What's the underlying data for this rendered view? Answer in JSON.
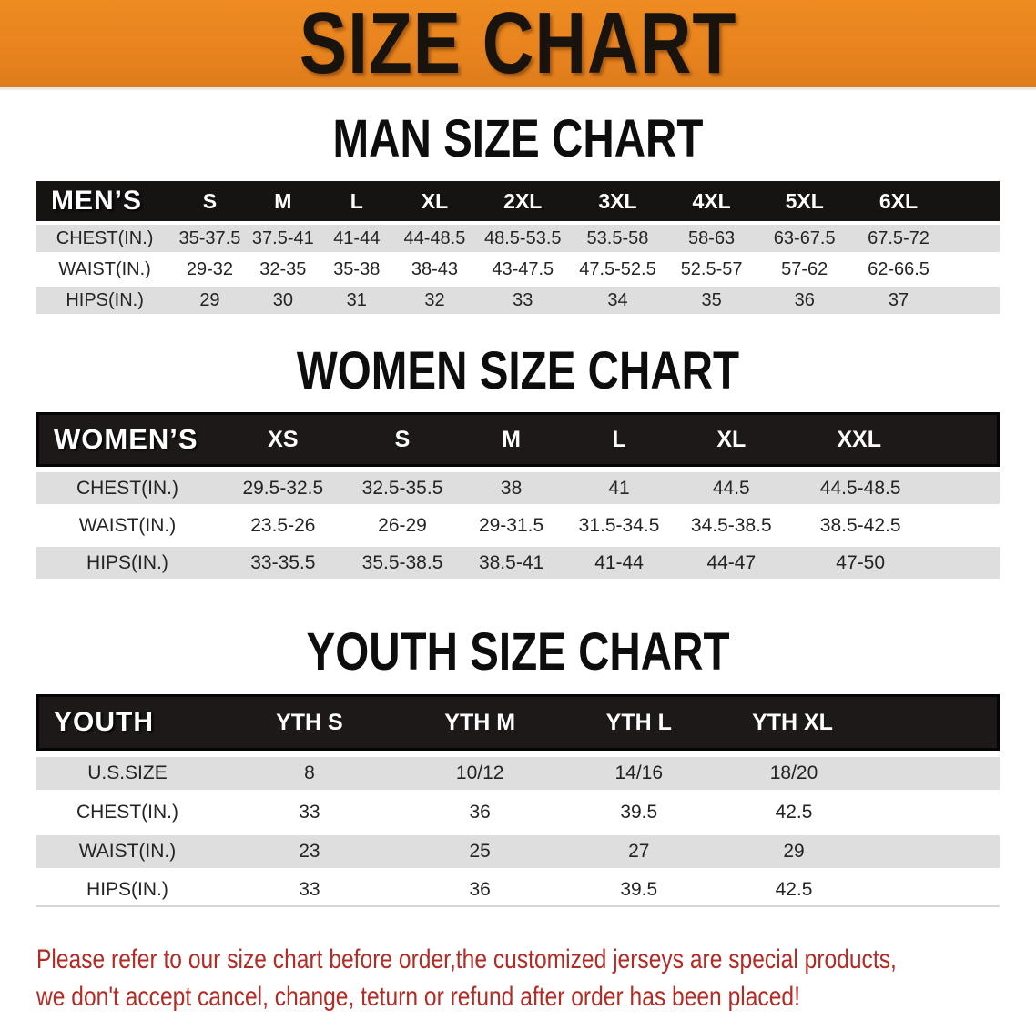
{
  "banner": {
    "title": "SIZE CHART",
    "bg_color": "#e8831e",
    "text_color": "#19130e"
  },
  "sections": [
    {
      "heading": "MAN SIZE CHART",
      "table": {
        "header": [
          "MEN’S",
          "S",
          "M",
          "L",
          "XL",
          "2XL",
          "3XL",
          "4XL",
          "5XL",
          "6XL"
        ],
        "rows": [
          [
            "CHEST(IN.)",
            "35-37.5",
            "37.5-41",
            "41-44",
            "44-48.5",
            "48.5-53.5",
            "53.5-58",
            "58-63",
            "63-67.5",
            "67.5-72"
          ],
          [
            "WAIST(IN.)",
            "29-32",
            "32-35",
            "35-38",
            "38-43",
            "43-47.5",
            "47.5-52.5",
            "52.5-57",
            "57-62",
            "62-66.5"
          ],
          [
            "HIPS(IN.)",
            "29",
            "30",
            "31",
            "32",
            "33",
            "34",
            "35",
            "36",
            "37"
          ]
        ]
      }
    },
    {
      "heading": "WOMEN SIZE CHART",
      "table": {
        "header": [
          "WOMEN’S",
          "XS",
          "S",
          "M",
          "L",
          "XL",
          "XXL"
        ],
        "rows": [
          [
            "CHEST(IN.)",
            "29.5-32.5",
            "32.5-35.5",
            "38",
            "41",
            "44.5",
            "44.5-48.5"
          ],
          [
            "WAIST(IN.)",
            "23.5-26",
            "26-29",
            "29-31.5",
            "31.5-34.5",
            "34.5-38.5",
            "38.5-42.5"
          ],
          [
            "HIPS(IN.)",
            "33-35.5",
            "35.5-38.5",
            "38.5-41",
            "41-44",
            "44-47",
            "47-50"
          ]
        ]
      }
    },
    {
      "heading": "YOUTH SIZE CHART",
      "table": {
        "header": [
          "YOUTH",
          "YTH S",
          "YTH M",
          "YTH L",
          "YTH XL"
        ],
        "rows": [
          [
            "U.S.SIZE",
            "8",
            "10/12",
            "14/16",
            "18/20"
          ],
          [
            "CHEST(IN.)",
            "33",
            "36",
            "39.5",
            "42.5"
          ],
          [
            "WAIST(IN.)",
            "23",
            "25",
            "27",
            "29"
          ],
          [
            "HIPS(IN.)",
            "33",
            "36",
            "39.5",
            "42.5"
          ]
        ]
      }
    }
  ],
  "disclaimer": {
    "line1": "Please refer to our size chart before order,the customized jerseys are special products,",
    "line2": "we don't accept cancel, change, teturn or refund after order has been placed!",
    "text_color": "#b22b24"
  },
  "colors": {
    "banner_orange": "#e8831e",
    "table_header_black": "#161313",
    "row_stripe_gray": "#dedede",
    "disclaimer_red": "#b22b24"
  }
}
